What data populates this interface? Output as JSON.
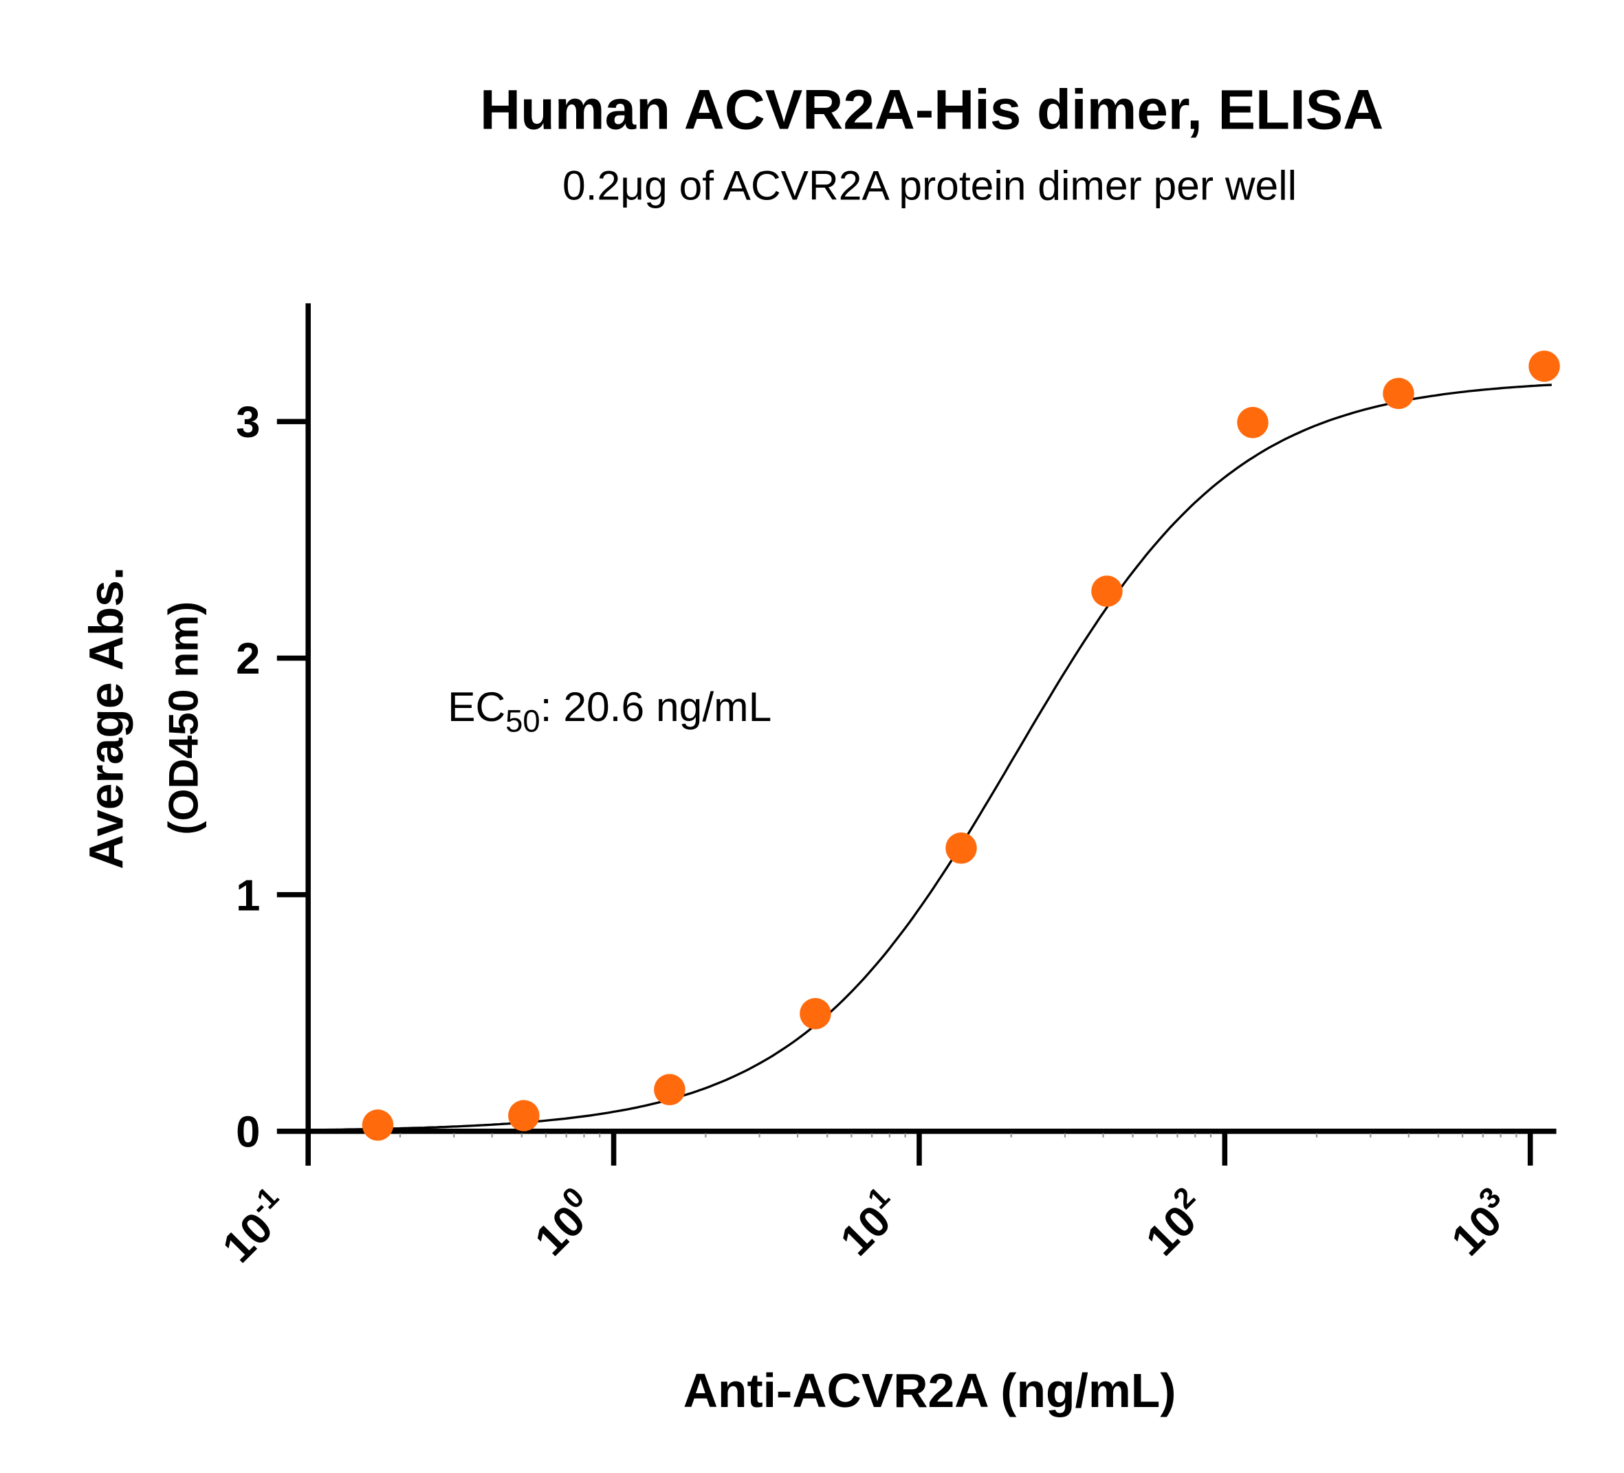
{
  "chart_data": {
    "type": "scatter",
    "title": "Human ACVR2A-His dimer, ELISA",
    "subtitle": "0.2μg of ACVR2A protein dimer per well",
    "xlabel": "Anti-ACVR2A (ng/mL)",
    "ylabel": "Average Abs.",
    "ylabel2": "(OD450 nm)",
    "x_scale": "log",
    "xlim": [
      0.1,
      1200
    ],
    "ylim": [
      0,
      3.5
    ],
    "grid": false,
    "x_ticks": [
      {
        "value": 0.1,
        "base": "10",
        "exp": "-1"
      },
      {
        "value": 1,
        "base": "10",
        "exp": "0"
      },
      {
        "value": 10,
        "base": "10",
        "exp": "1"
      },
      {
        "value": 100,
        "base": "10",
        "exp": "2"
      },
      {
        "value": 1000,
        "base": "10",
        "exp": "3"
      }
    ],
    "y_ticks": [
      {
        "value": 0,
        "label": "0"
      },
      {
        "value": 1,
        "label": "1"
      },
      {
        "value": 2,
        "label": "2"
      },
      {
        "value": 3,
        "label": "3"
      }
    ],
    "points": {
      "color": "#ff6a0d",
      "x": [
        0.169,
        0.508,
        1.524,
        4.572,
        13.72,
        41.15,
        123.5,
        370.4,
        1111.1
      ],
      "y": [
        0.026,
        0.066,
        0.176,
        0.497,
        1.197,
        2.283,
        2.996,
        3.119,
        3.234
      ]
    },
    "fit": {
      "model": "4PL",
      "bottom": 0.0,
      "top": 3.18,
      "ec50": 20.6,
      "hill": 1.2,
      "color": "#000000"
    },
    "annotation": {
      "prefix": "EC",
      "sub": "50",
      "suffix": ": 20.6 ng/mL"
    }
  }
}
